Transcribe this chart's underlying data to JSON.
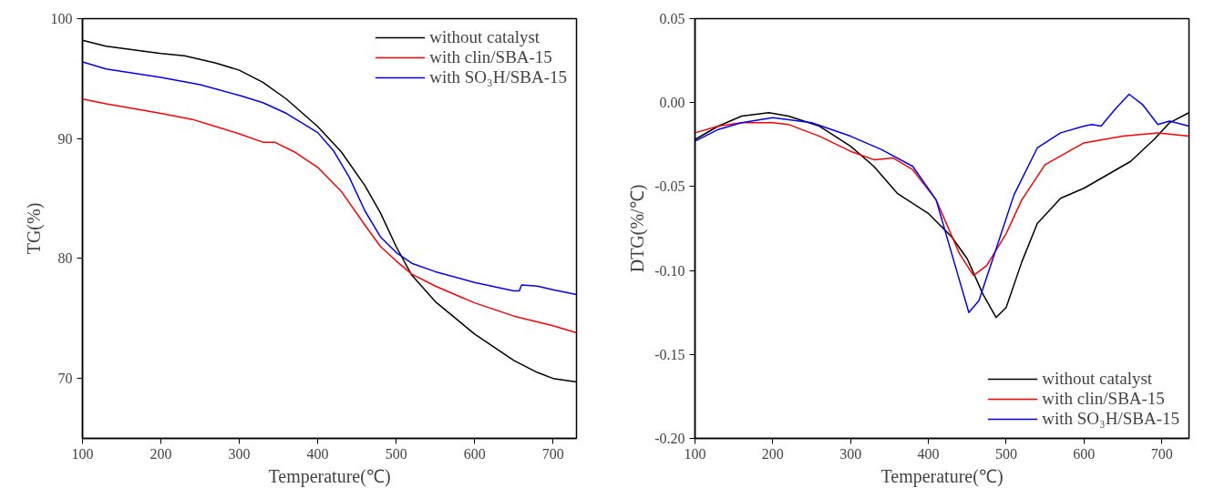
{
  "chart_data": [
    {
      "type": "line",
      "xlabel": "Temperature(℃)",
      "ylabel": "TG(%)",
      "xlim": [
        100,
        730
      ],
      "ylim": [
        65,
        100
      ],
      "xticks": [
        100,
        200,
        300,
        400,
        500,
        600,
        700
      ],
      "yticks": [
        70,
        80,
        90,
        100
      ],
      "grid": false,
      "legend": "top right",
      "series": [
        {
          "name": "without catalyst",
          "color": "#000000",
          "x": [
            100,
            130,
            200,
            230,
            270,
            300,
            330,
            360,
            400,
            430,
            460,
            480,
            500,
            520,
            550,
            600,
            650,
            680,
            700,
            730
          ],
          "values": [
            98.2,
            97.7,
            97.1,
            96.9,
            96.3,
            95.7,
            94.7,
            93.3,
            91.0,
            88.9,
            86.1,
            83.8,
            81.0,
            78.6,
            76.4,
            73.7,
            71.5,
            70.5,
            70.0,
            69.7
          ]
        },
        {
          "name": "with clin/SBA-15",
          "color": "#ff0000",
          "x": [
            100,
            130,
            200,
            240,
            270,
            300,
            330,
            345,
            370,
            400,
            430,
            460,
            480,
            500,
            520,
            550,
            600,
            650,
            700,
            730
          ],
          "values": [
            93.3,
            92.9,
            92.1,
            91.6,
            91.0,
            90.4,
            89.7,
            89.7,
            88.9,
            87.6,
            85.6,
            82.8,
            81.0,
            79.8,
            78.7,
            77.7,
            76.3,
            75.2,
            74.4,
            73.8
          ]
        },
        {
          "name": "with SO₃H/SBA-15",
          "color": "#0000ff",
          "x": [
            100,
            130,
            200,
            250,
            300,
            330,
            360,
            400,
            420,
            440,
            460,
            480,
            500,
            520,
            550,
            600,
            650,
            657,
            660,
            680,
            700,
            730
          ],
          "values": [
            96.4,
            95.8,
            95.1,
            94.5,
            93.6,
            93.0,
            92.1,
            90.5,
            89.0,
            86.8,
            84.0,
            81.8,
            80.5,
            79.6,
            78.9,
            78.0,
            77.3,
            77.3,
            77.8,
            77.7,
            77.4,
            77.0
          ]
        }
      ]
    },
    {
      "type": "line",
      "xlabel": "Temperature(℃)",
      "ylabel": "DTG(%/℃)",
      "xlim": [
        100,
        735
      ],
      "ylim": [
        -0.2,
        0.05
      ],
      "xticks": [
        100,
        200,
        300,
        400,
        500,
        600,
        700
      ],
      "yticks": [
        {
          "value": -0.2,
          "label": "-0.20"
        },
        {
          "value": -0.15,
          "label": "-0.15"
        },
        {
          "value": -0.1,
          "label": "-0.10"
        },
        {
          "value": -0.05,
          "label": "-0.05"
        },
        {
          "value": 0,
          "label": "0.00"
        },
        {
          "value": 0.05,
          "label": "0.05"
        }
      ],
      "grid": false,
      "legend": "bottom right",
      "series": [
        {
          "name": "without catalyst",
          "color": "#000000",
          "x": [
            100,
            130,
            160,
            195,
            220,
            260,
            300,
            330,
            360,
            400,
            430,
            450,
            470,
            487,
            500,
            520,
            540,
            570,
            600,
            630,
            660,
            690,
            710,
            735
          ],
          "values": [
            -0.022,
            -0.014,
            -0.008,
            -0.006,
            -0.008,
            -0.014,
            -0.026,
            -0.038,
            -0.054,
            -0.066,
            -0.08,
            -0.093,
            -0.114,
            -0.128,
            -0.122,
            -0.095,
            -0.072,
            -0.057,
            -0.051,
            -0.043,
            -0.035,
            -0.022,
            -0.012,
            -0.006
          ]
        },
        {
          "name": "with clin/SBA-15",
          "color": "#ff0000",
          "x": [
            100,
            130,
            160,
            200,
            220,
            260,
            300,
            330,
            355,
            380,
            410,
            440,
            458,
            475,
            500,
            520,
            550,
            600,
            650,
            695,
            735
          ],
          "values": [
            -0.018,
            -0.014,
            -0.012,
            -0.012,
            -0.013,
            -0.02,
            -0.029,
            -0.034,
            -0.033,
            -0.04,
            -0.058,
            -0.09,
            -0.103,
            -0.097,
            -0.078,
            -0.058,
            -0.037,
            -0.024,
            -0.02,
            -0.018,
            -0.02
          ]
        },
        {
          "name": "with SO₃H/SBA-15",
          "color": "#0000ff",
          "x": [
            100,
            130,
            160,
            200,
            250,
            300,
            340,
            380,
            410,
            435,
            452,
            465,
            485,
            510,
            540,
            570,
            600,
            610,
            622,
            640,
            658,
            675,
            695,
            710,
            735
          ],
          "values": [
            -0.023,
            -0.016,
            -0.012,
            -0.009,
            -0.012,
            -0.02,
            -0.028,
            -0.038,
            -0.058,
            -0.098,
            -0.125,
            -0.118,
            -0.09,
            -0.055,
            -0.027,
            -0.018,
            -0.014,
            -0.013,
            -0.014,
            -0.004,
            0.005,
            -0.001,
            -0.013,
            -0.011,
            -0.014
          ]
        }
      ]
    }
  ]
}
